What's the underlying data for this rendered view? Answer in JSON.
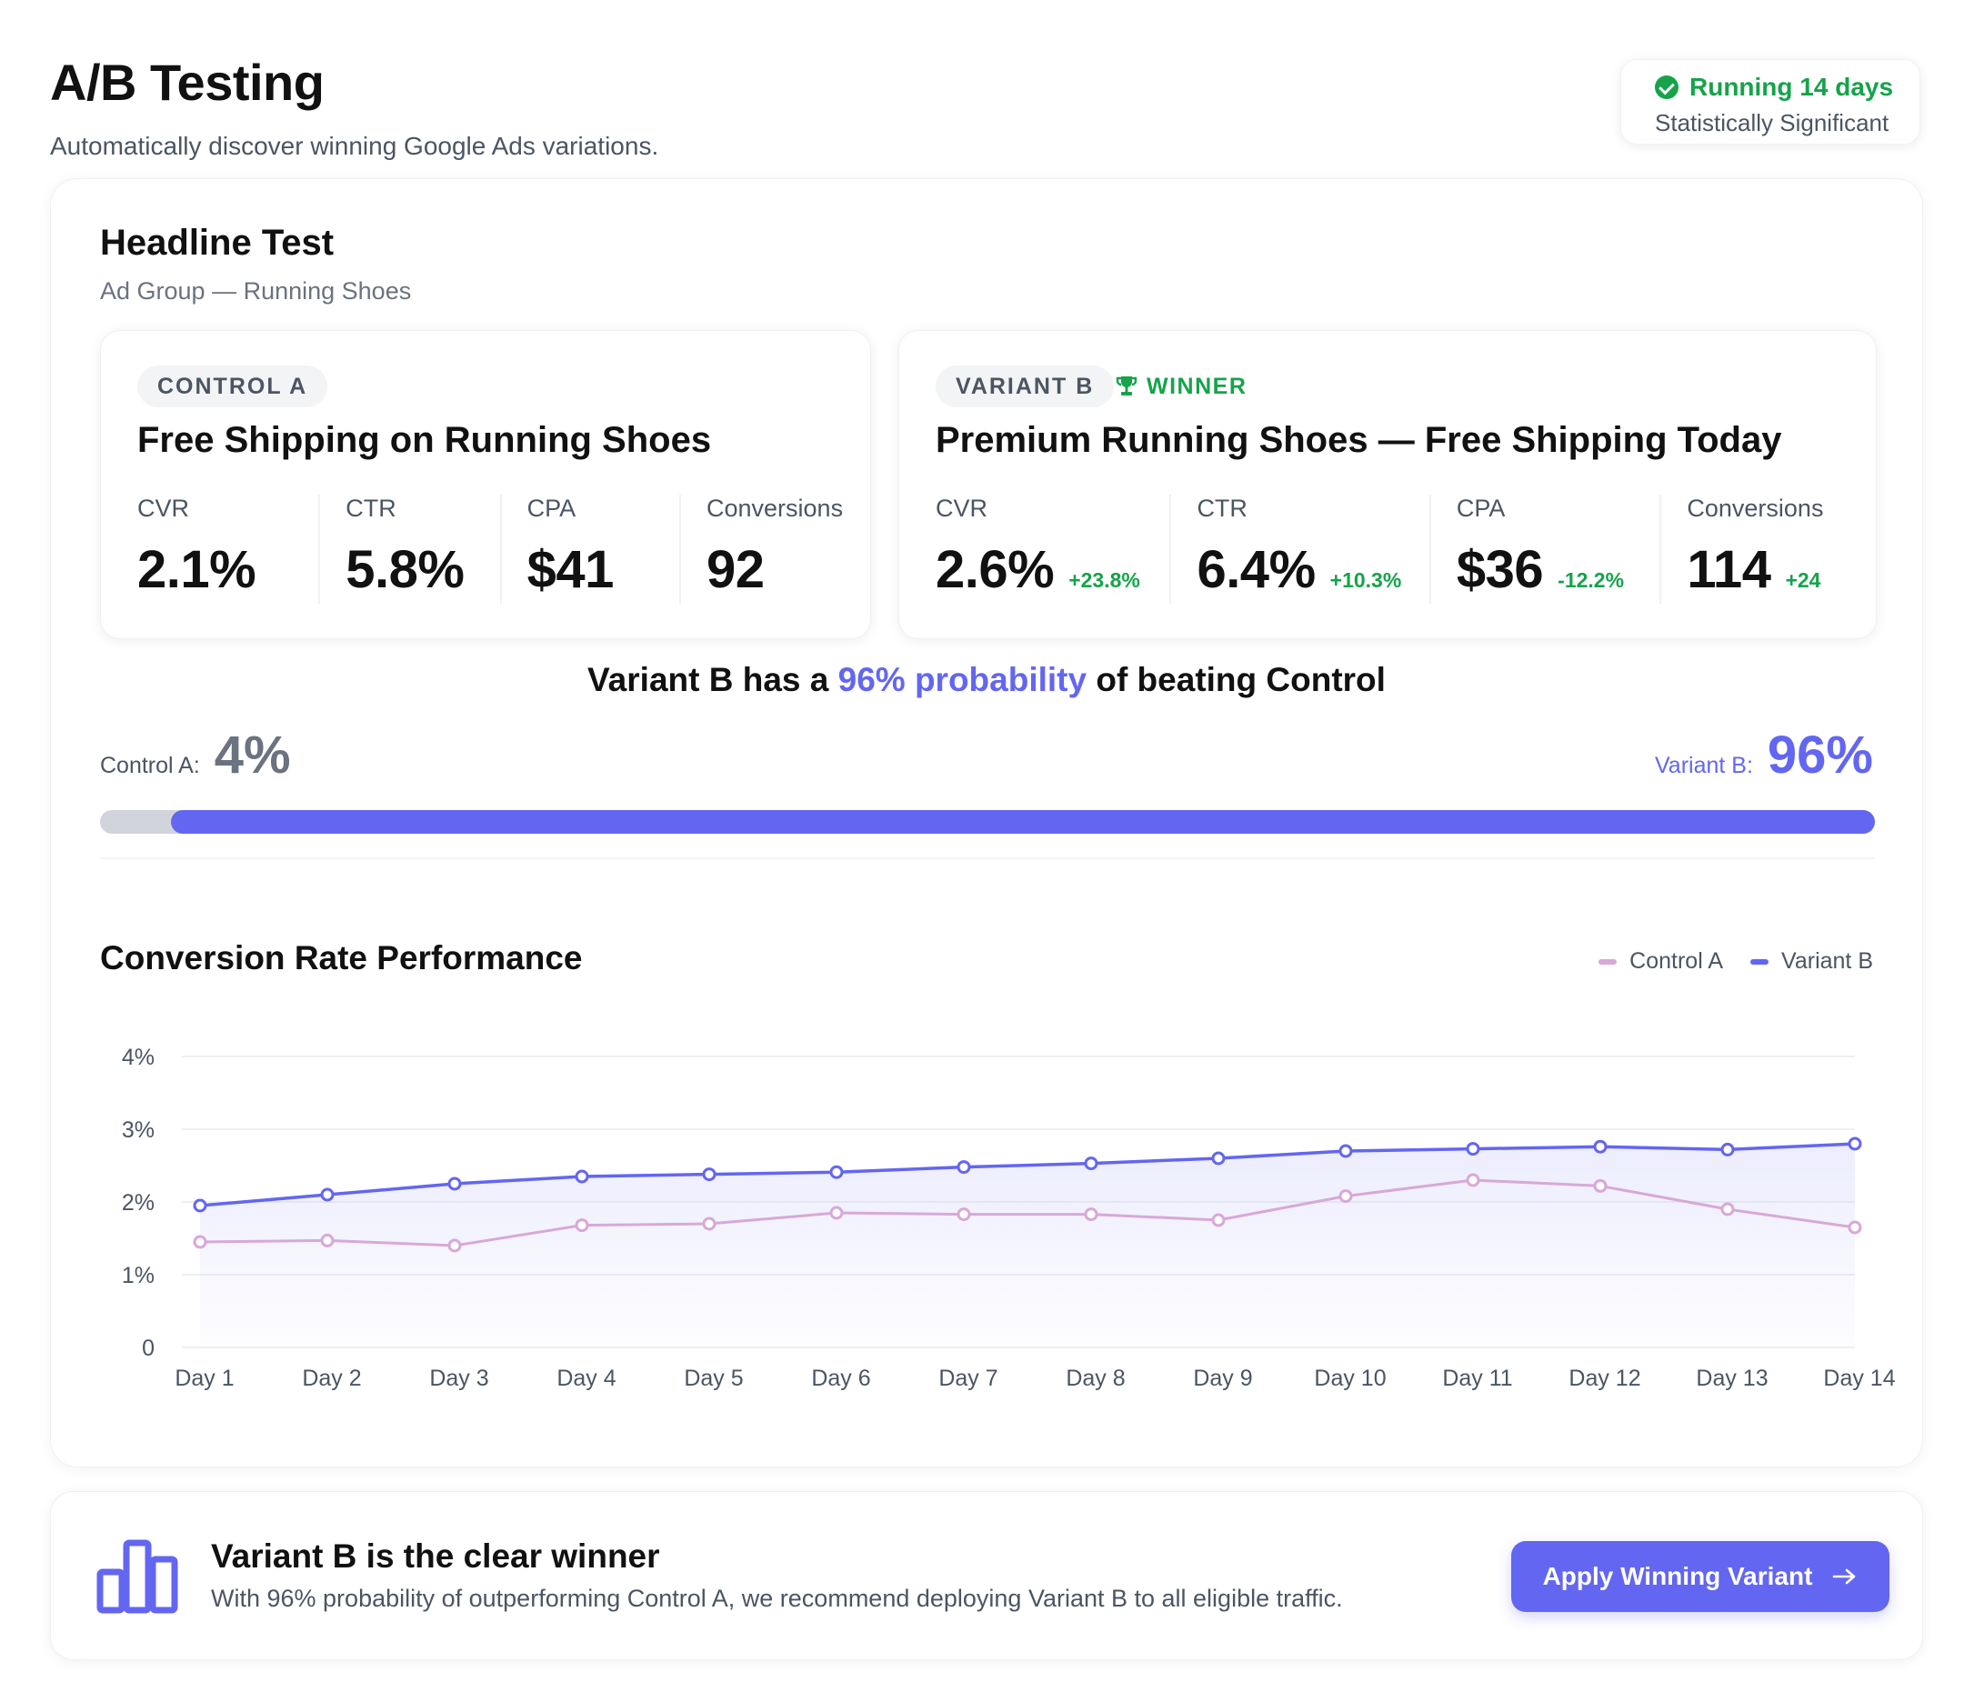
{
  "header": {
    "title": "A/B Testing",
    "subtitle": "Automatically discover winning Google Ads variations."
  },
  "status": {
    "icon": "check-circle-icon",
    "label": "Running 14 days",
    "sublabel": "Statistically Significant",
    "color": "#16a34a"
  },
  "test": {
    "title": "Headline Test",
    "subtitle": "Ad Group — Running Shoes"
  },
  "control": {
    "tag": "CONTROL A",
    "headline": "Free Shipping on Running Shoes",
    "metrics": [
      {
        "label": "CVR",
        "value": "2.1%"
      },
      {
        "label": "CTR",
        "value": "5.8%"
      },
      {
        "label": "CPA",
        "value": "$41"
      },
      {
        "label": "Conversions",
        "value": "92"
      }
    ]
  },
  "variant": {
    "tag": "VARIANT B",
    "winner_label": "WINNER",
    "winner_icon": "trophy-icon",
    "headline": "Premium Running Shoes — Free Shipping Today",
    "metrics": [
      {
        "label": "CVR",
        "value": "2.6%",
        "delta": "+23.8%"
      },
      {
        "label": "CTR",
        "value": "6.4%",
        "delta": "+10.3%"
      },
      {
        "label": "CPA",
        "value": "$36",
        "delta": "-12.2%"
      },
      {
        "label": "Conversions",
        "value": "114",
        "delta": "+24"
      }
    ]
  },
  "probability": {
    "heading_pre": "Variant B has a ",
    "heading_highlight": "96% probability",
    "heading_post": " of beating Control",
    "control_label": "Control A:",
    "control_value": "4%",
    "variant_label": "Variant B:",
    "variant_value": "96%",
    "control_fraction": 0.04,
    "variant_fraction": 0.96
  },
  "chart_data": {
    "type": "line",
    "title": "Conversion Rate Performance",
    "categories": [
      "Day 1",
      "Day 2",
      "Day 3",
      "Day 4",
      "Day 5",
      "Day 6",
      "Day 7",
      "Day 8",
      "Day 9",
      "Day 10",
      "Day 11",
      "Day 12",
      "Day 13",
      "Day 14"
    ],
    "y_ticks": [
      "0",
      "1%",
      "2%",
      "3%",
      "4%"
    ],
    "ylim": [
      0,
      4
    ],
    "grid": true,
    "legend_position": "top-right",
    "series": [
      {
        "name": "Control A",
        "color": "#d8a8d8",
        "values": [
          1.45,
          1.47,
          1.4,
          1.68,
          1.7,
          1.85,
          1.83,
          1.83,
          1.75,
          2.08,
          2.3,
          2.22,
          1.9,
          1.65
        ]
      },
      {
        "name": "Variant B",
        "color": "#6366f1",
        "values": [
          1.95,
          2.1,
          2.25,
          2.35,
          2.38,
          2.41,
          2.48,
          2.53,
          2.6,
          2.7,
          2.73,
          2.76,
          2.72,
          2.8
        ]
      }
    ]
  },
  "recommendation": {
    "icon": "bar-chart-icon",
    "title": "Variant B is the clear winner",
    "text": "With 96% probability of outperforming Control A, we recommend deploying Variant B to all eligible traffic.",
    "button_label": "Apply Winning Variant",
    "button_icon": "arrow-right-icon",
    "accent": "#6366f1"
  }
}
